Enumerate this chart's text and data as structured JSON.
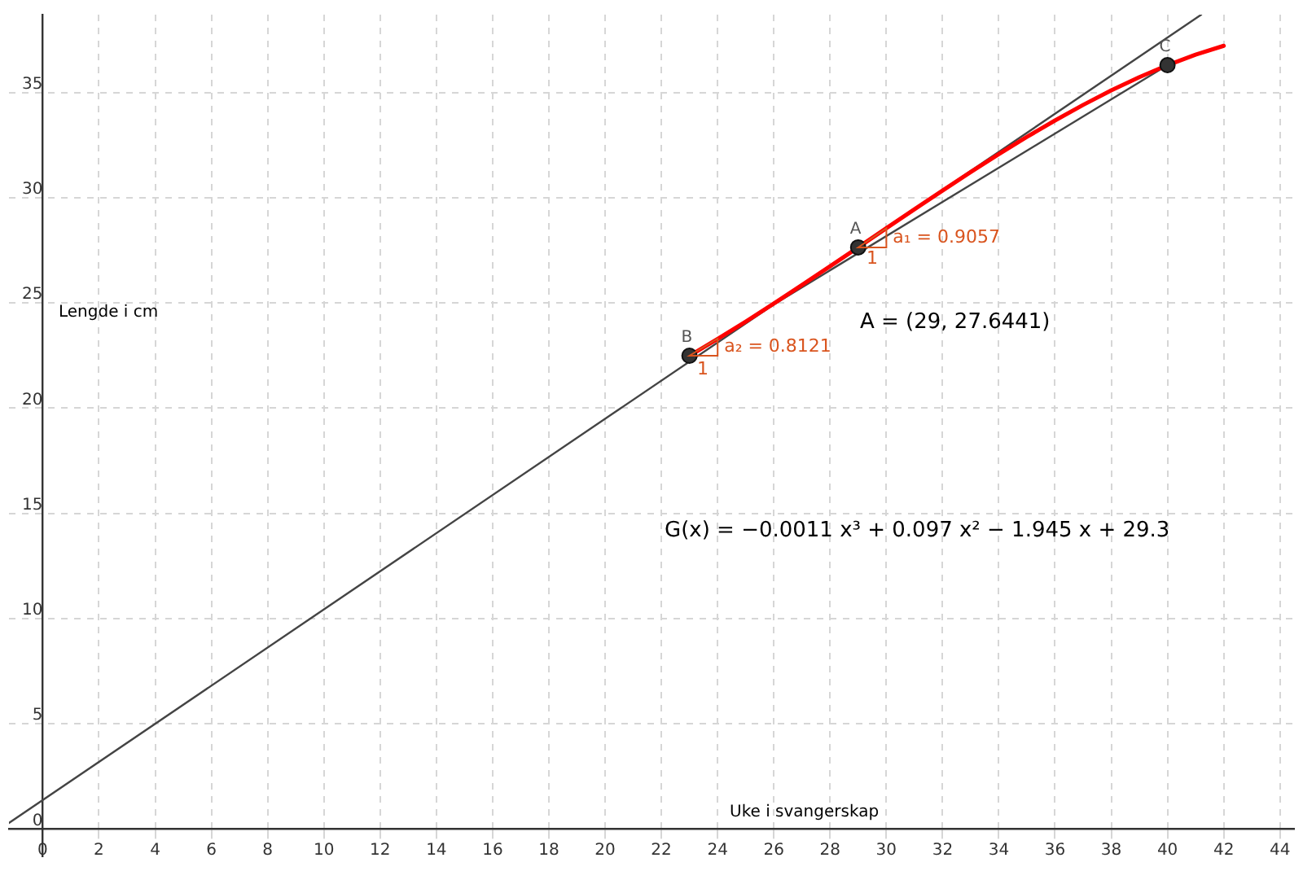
{
  "chart_data": {
    "type": "line",
    "xlabel": "Uke i svangerskap",
    "ylabel": "Lengde i cm",
    "xlim": [
      -1.2,
      44.5
    ],
    "ylim": [
      -1.3,
      38.7
    ],
    "xticks": [
      0,
      2,
      4,
      6,
      8,
      10,
      12,
      14,
      16,
      18,
      20,
      22,
      24,
      26,
      28,
      30,
      32,
      34,
      36,
      38,
      40,
      42,
      44
    ],
    "yticks": [
      0,
      5,
      10,
      15,
      20,
      25,
      30,
      35
    ],
    "grid": true,
    "legend": false,
    "series": [
      {
        "type": "line",
        "color": "#ff0000",
        "marker": "none",
        "x": [
          23,
          24,
          25,
          26,
          27,
          28,
          29,
          30,
          31,
          32,
          33,
          34,
          35,
          36,
          37,
          38,
          39,
          40,
          41,
          42
        ],
        "values": [
          22.49,
          23.29,
          24.11,
          24.97,
          25.85,
          26.74,
          27.64,
          28.55,
          29.45,
          30.34,
          31.22,
          32.07,
          32.89,
          33.67,
          34.41,
          35.1,
          35.73,
          36.3,
          36.8,
          37.22
        ]
      },
      {
        "type": "line",
        "color": "#444444",
        "marker": "none",
        "x": [
          -1.2,
          41.2
        ],
        "values": [
          0.29,
          38.7
        ]
      },
      {
        "type": "line",
        "color": "#444444",
        "marker": "none",
        "x": [
          23,
          40
        ],
        "values": [
          22.49,
          36.3
        ]
      },
      {
        "type": "scatter",
        "color": "#333333",
        "marker": "circle",
        "x": [
          29,
          23,
          40
        ],
        "values": [
          27.64,
          22.49,
          36.3
        ]
      }
    ],
    "annotations": [
      {
        "text": "A",
        "x": 29,
        "y": 27.64
      },
      {
        "text": "B",
        "x": 23,
        "y": 22.49
      },
      {
        "text": "C",
        "x": 40,
        "y": 36.3
      },
      {
        "text": "a₁ = 0.9057",
        "x": 30,
        "y": 28.1
      },
      {
        "text": "a₂ = 0.8121",
        "x": 24,
        "y": 22.9
      },
      "1",
      "1",
      "A = (29, 27.6441)",
      "G(x) = −0.0011 x³ + 0.097 x² − 1.945 x + 29.3"
    ]
  }
}
